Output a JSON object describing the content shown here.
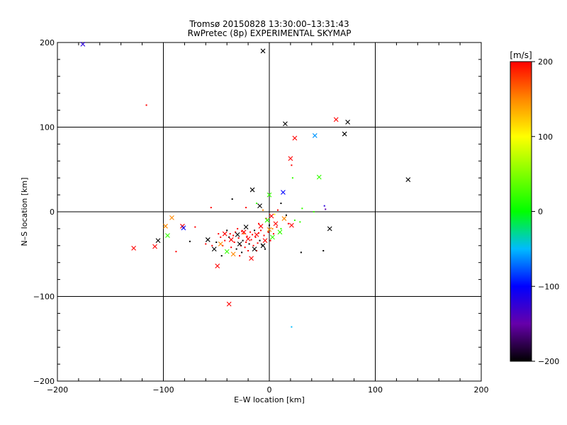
{
  "chart_data": {
    "type": "scatter",
    "title": "Tromsø 20150828 13:30:00–13:31:43",
    "subtitle": "RwPretec (8p) EXPERIMENTAL SKYMAP",
    "xlabel": "E–W location [km]",
    "ylabel": "N–S location [km]",
    "xlim": [
      -200,
      200
    ],
    "ylim": [
      -200,
      200
    ],
    "xticks": [
      -200,
      -100,
      0,
      100,
      200
    ],
    "yticks": [
      -200,
      -100,
      0,
      100,
      200
    ],
    "xtick_labels": [
      "−200",
      "−100",
      "0",
      "100",
      "200"
    ],
    "ytick_labels": [
      "200",
      "100",
      "0",
      "−100",
      "−200"
    ],
    "grid": true,
    "colorbar": {
      "label": "[m/s]",
      "range": [
        -200,
        200
      ],
      "ticks": [
        200,
        100,
        0,
        -100,
        -200
      ],
      "tick_labels": [
        "200",
        "100",
        "0",
        "−100",
        "−200"
      ],
      "stops": [
        {
          "v": -200,
          "color": "#000000"
        },
        {
          "v": -150,
          "color": "#6600aa"
        },
        {
          "v": -100,
          "color": "#0000ff"
        },
        {
          "v": -50,
          "color": "#00bbff"
        },
        {
          "v": 0,
          "color": "#00ff00"
        },
        {
          "v": 100,
          "color": "#ffff00"
        },
        {
          "v": 150,
          "color": "#ff8800"
        },
        {
          "v": 200,
          "color": "#ff0000"
        }
      ]
    },
    "x_markers": [
      {
        "x": -176,
        "y": 198,
        "v": -120
      },
      {
        "x": -6,
        "y": 190,
        "v": -200
      },
      {
        "x": 15,
        "y": 104,
        "v": -200
      },
      {
        "x": 63,
        "y": 109,
        "v": 200
      },
      {
        "x": 74,
        "y": 106,
        "v": -200
      },
      {
        "x": 71,
        "y": 92,
        "v": -200
      },
      {
        "x": 43,
        "y": 90,
        "v": -60
      },
      {
        "x": 24,
        "y": 87,
        "v": 200
      },
      {
        "x": 20,
        "y": 63,
        "v": 200
      },
      {
        "x": 131,
        "y": 38,
        "v": -200
      },
      {
        "x": 47,
        "y": 41,
        "v": 20
      },
      {
        "x": -16,
        "y": 26,
        "v": -200
      },
      {
        "x": 13,
        "y": 23,
        "v": -100
      },
      {
        "x": 0,
        "y": 20,
        "v": 20
      },
      {
        "x": -9,
        "y": 7,
        "v": -200
      },
      {
        "x": -92,
        "y": -7,
        "v": 150
      },
      {
        "x": -98,
        "y": -17,
        "v": 150
      },
      {
        "x": -82,
        "y": -17,
        "v": 200
      },
      {
        "x": -81,
        "y": -19,
        "v": -100
      },
      {
        "x": -96,
        "y": -28,
        "v": 20
      },
      {
        "x": -105,
        "y": -34,
        "v": -200
      },
      {
        "x": -108,
        "y": -41,
        "v": 200
      },
      {
        "x": -128,
        "y": -43,
        "v": 200
      },
      {
        "x": 57,
        "y": -20,
        "v": -200
      },
      {
        "x": 21,
        "y": -16,
        "v": 200
      },
      {
        "x": -49,
        "y": -64,
        "v": 200
      },
      {
        "x": -38,
        "y": -109,
        "v": 200
      },
      {
        "x": -17,
        "y": -55,
        "v": 200
      },
      {
        "x": -6,
        "y": -40,
        "v": -200
      },
      {
        "x": -40,
        "y": -47,
        "v": 20
      },
      {
        "x": -58,
        "y": -33,
        "v": -200
      },
      {
        "x": -46,
        "y": -38,
        "v": 150
      },
      {
        "x": -36,
        "y": -33,
        "v": 200
      },
      {
        "x": -30,
        "y": -27,
        "v": -200
      },
      {
        "x": -24,
        "y": -24,
        "v": 200
      },
      {
        "x": -28,
        "y": -38,
        "v": -200
      },
      {
        "x": -20,
        "y": -32,
        "v": 200
      },
      {
        "x": -12,
        "y": -27,
        "v": 200
      },
      {
        "x": -8,
        "y": -17,
        "v": 200
      },
      {
        "x": 0,
        "y": -21,
        "v": 150
      },
      {
        "x": 6,
        "y": -14,
        "v": 200
      },
      {
        "x": 10,
        "y": -24,
        "v": 20
      },
      {
        "x": 3,
        "y": -30,
        "v": 20
      },
      {
        "x": -4,
        "y": -34,
        "v": 200
      },
      {
        "x": -14,
        "y": -44,
        "v": -200
      },
      {
        "x": -34,
        "y": -50,
        "v": 150
      },
      {
        "x": -52,
        "y": -44,
        "v": -200
      },
      {
        "x": -42,
        "y": -26,
        "v": 200
      },
      {
        "x": -22,
        "y": -18,
        "v": -200
      },
      {
        "x": -2,
        "y": -10,
        "v": 20
      },
      {
        "x": 14,
        "y": -8,
        "v": 150
      },
      {
        "x": 2,
        "y": -5,
        "v": 200
      }
    ],
    "dots": [
      {
        "x": -116,
        "y": 126,
        "v": 200
      },
      {
        "x": -35,
        "y": 15,
        "v": -200
      },
      {
        "x": -55,
        "y": 5,
        "v": 200
      },
      {
        "x": -70,
        "y": -18,
        "v": 200
      },
      {
        "x": -88,
        "y": -47,
        "v": 200
      },
      {
        "x": -75,
        "y": -35,
        "v": -200
      },
      {
        "x": 21,
        "y": 55,
        "v": 200
      },
      {
        "x": 22,
        "y": 40,
        "v": 20
      },
      {
        "x": 31,
        "y": 4,
        "v": 20
      },
      {
        "x": 42,
        "y": 0,
        "v": 20
      },
      {
        "x": 52,
        "y": 7,
        "v": -120
      },
      {
        "x": 53,
        "y": 3,
        "v": -150
      },
      {
        "x": 30,
        "y": -48,
        "v": -200
      },
      {
        "x": 51,
        "y": -46,
        "v": -200
      },
      {
        "x": 21,
        "y": -136,
        "v": -50
      },
      {
        "x": 29,
        "y": -12,
        "v": 20
      },
      {
        "x": 11,
        "y": 10,
        "v": -200
      },
      {
        "x": 5,
        "y": -3,
        "v": 100
      },
      {
        "x": -22,
        "y": 5,
        "v": 200
      },
      {
        "x": -12,
        "y": 10,
        "v": 20
      },
      {
        "x": -30,
        "y": -20,
        "v": 200
      },
      {
        "x": -26,
        "y": -23,
        "v": 200
      },
      {
        "x": -18,
        "y": -24,
        "v": 200
      },
      {
        "x": -14,
        "y": -22,
        "v": -200
      },
      {
        "x": -10,
        "y": -25,
        "v": 200
      },
      {
        "x": -34,
        "y": -28,
        "v": 200
      },
      {
        "x": -38,
        "y": -30,
        "v": -200
      },
      {
        "x": -42,
        "y": -34,
        "v": 200
      },
      {
        "x": -46,
        "y": -30,
        "v": 200
      },
      {
        "x": -50,
        "y": -36,
        "v": -200
      },
      {
        "x": -33,
        "y": -36,
        "v": 200
      },
      {
        "x": -29,
        "y": -31,
        "v": 200
      },
      {
        "x": -25,
        "y": -34,
        "v": -200
      },
      {
        "x": -21,
        "y": -29,
        "v": 200
      },
      {
        "x": -17,
        "y": -33,
        "v": 200
      },
      {
        "x": -13,
        "y": -30,
        "v": 200
      },
      {
        "x": -9,
        "y": -34,
        "v": -200
      },
      {
        "x": -5,
        "y": -28,
        "v": 200
      },
      {
        "x": -1,
        "y": -24,
        "v": 200
      },
      {
        "x": 3,
        "y": -20,
        "v": 150
      },
      {
        "x": 7,
        "y": -18,
        "v": 200
      },
      {
        "x": 11,
        "y": -20,
        "v": 20
      },
      {
        "x": -36,
        "y": -42,
        "v": 200
      },
      {
        "x": -31,
        "y": -44,
        "v": -200
      },
      {
        "x": -27,
        "y": -40,
        "v": 200
      },
      {
        "x": -23,
        "y": -42,
        "v": 200
      },
      {
        "x": -19,
        "y": -38,
        "v": -200
      },
      {
        "x": -15,
        "y": -40,
        "v": 200
      },
      {
        "x": -11,
        "y": -37,
        "v": 200
      },
      {
        "x": -7,
        "y": -39,
        "v": -200
      },
      {
        "x": -44,
        "y": -40,
        "v": 200
      },
      {
        "x": -48,
        "y": -26,
        "v": 200
      },
      {
        "x": -40,
        "y": -22,
        "v": -200
      },
      {
        "x": -24,
        "y": -26,
        "v": 150
      },
      {
        "x": -16,
        "y": -27,
        "v": 200
      },
      {
        "x": -8,
        "y": -22,
        "v": 200
      },
      {
        "x": 0,
        "y": -16,
        "v": -200
      },
      {
        "x": 4,
        "y": -26,
        "v": 200
      },
      {
        "x": -20,
        "y": -46,
        "v": 200
      },
      {
        "x": -26,
        "y": -48,
        "v": -200
      },
      {
        "x": -54,
        "y": -40,
        "v": 200
      },
      {
        "x": -60,
        "y": -38,
        "v": 200
      },
      {
        "x": -3,
        "y": -8,
        "v": 200
      },
      {
        "x": -6,
        "y": 2,
        "v": 150
      },
      {
        "x": 8,
        "y": 2,
        "v": 200
      },
      {
        "x": 16,
        "y": -4,
        "v": -200
      },
      {
        "x": -32,
        "y": -24,
        "v": 200
      },
      {
        "x": -37,
        "y": -26,
        "v": 200
      },
      {
        "x": -22,
        "y": -36,
        "v": 200
      },
      {
        "x": -12,
        "y": -46,
        "v": 200
      },
      {
        "x": -4,
        "y": -44,
        "v": -200
      },
      {
        "x": 1,
        "y": -34,
        "v": 200
      },
      {
        "x": -28,
        "y": -52,
        "v": 200
      },
      {
        "x": -45,
        "y": -52,
        "v": -200
      },
      {
        "x": -10,
        "y": -14,
        "v": 200
      },
      {
        "x": 18,
        "y": -14,
        "v": 200
      },
      {
        "x": 24,
        "y": -10,
        "v": 20
      }
    ]
  }
}
